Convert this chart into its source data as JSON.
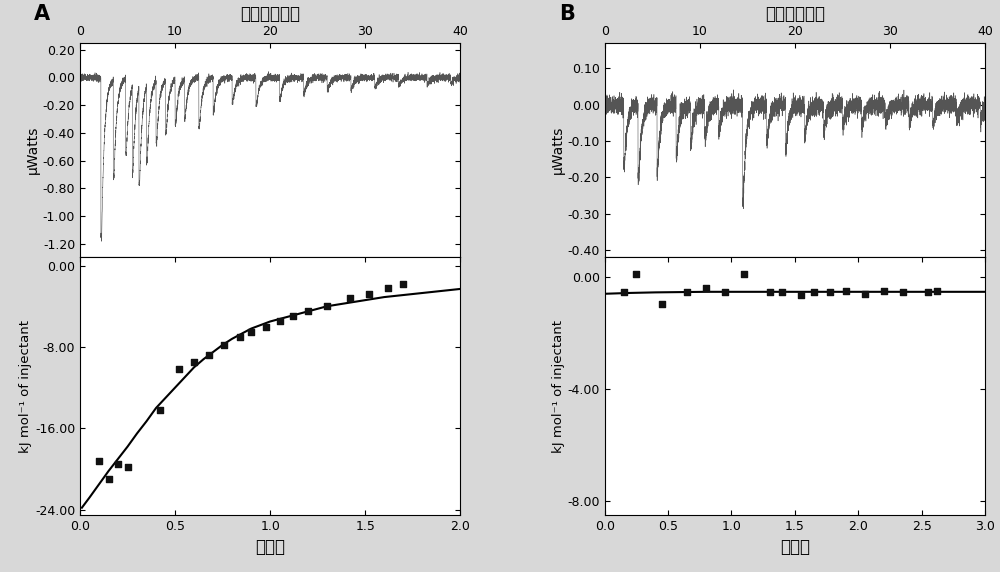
{
  "panel_A": {
    "label": "A",
    "top": {
      "xlabel": "时间（分钟）",
      "ylabel": "μWatts",
      "xlim": [
        0,
        40
      ],
      "ylim": [
        -1.3,
        0.25
      ],
      "yticks": [
        0.2,
        0.0,
        -0.2,
        -0.4,
        -0.6,
        -0.8,
        -1.0,
        -1.2
      ],
      "xticks": [
        0,
        10,
        20,
        30,
        40
      ]
    },
    "bottom": {
      "xlabel": "摩尔比",
      "ylabel": "kJ mol⁻¹ of injectant",
      "xlim": [
        0.0,
        2.0
      ],
      "ylim": [
        -24.5,
        0.8
      ],
      "yticks": [
        0.0,
        -8.0,
        -16.0,
        -24.0
      ],
      "xticks": [
        0.0,
        0.5,
        1.0,
        1.5,
        2.0
      ],
      "scatter_x": [
        0.1,
        0.15,
        0.2,
        0.25,
        0.42,
        0.52,
        0.6,
        0.68,
        0.76,
        0.84,
        0.9,
        0.98,
        1.05,
        1.12,
        1.2,
        1.3,
        1.42,
        1.52,
        1.62,
        1.7
      ],
      "scatter_y": [
        -19.2,
        -21.0,
        -19.5,
        -19.8,
        -14.2,
        -10.2,
        -9.5,
        -8.8,
        -7.8,
        -7.0,
        -6.5,
        -6.0,
        -5.5,
        -5.0,
        -4.5,
        -4.0,
        -3.2,
        -2.8,
        -2.2,
        -1.8
      ],
      "fit_x": [
        0.01,
        0.05,
        0.1,
        0.15,
        0.2,
        0.25,
        0.3,
        0.35,
        0.4,
        0.45,
        0.5,
        0.55,
        0.6,
        0.65,
        0.7,
        0.75,
        0.8,
        0.9,
        1.0,
        1.1,
        1.2,
        1.3,
        1.4,
        1.5,
        1.6,
        1.7,
        1.8,
        1.9,
        2.0
      ],
      "fit_y": [
        -23.8,
        -22.8,
        -21.5,
        -20.2,
        -19.0,
        -17.8,
        -16.5,
        -15.3,
        -14.0,
        -13.0,
        -12.0,
        -11.0,
        -10.0,
        -9.2,
        -8.5,
        -7.8,
        -7.2,
        -6.2,
        -5.5,
        -5.0,
        -4.5,
        -4.0,
        -3.7,
        -3.4,
        -3.1,
        -2.9,
        -2.7,
        -2.5,
        -2.3
      ]
    }
  },
  "panel_B": {
    "label": "B",
    "top": {
      "xlabel": "时间（分钟）",
      "ylabel": "μWatts",
      "xlim": [
        0,
        40
      ],
      "ylim": [
        -0.42,
        0.17
      ],
      "yticks": [
        0.1,
        0.0,
        -0.1,
        -0.2,
        -0.3,
        -0.4
      ],
      "xticks": [
        0,
        10,
        20,
        30,
        40
      ]
    },
    "bottom": {
      "xlabel": "摩尔比",
      "ylabel": "kJ mol⁻¹ of injectant",
      "xlim": [
        0.0,
        3.0
      ],
      "ylim": [
        -8.5,
        0.7
      ],
      "yticks": [
        0.0,
        -4.0,
        -8.0
      ],
      "xticks": [
        0.0,
        0.5,
        1.0,
        1.5,
        2.0,
        2.5,
        3.0
      ],
      "scatter_x": [
        0.15,
        0.25,
        0.45,
        0.65,
        0.8,
        0.95,
        1.1,
        1.3,
        1.4,
        1.55,
        1.65,
        1.78,
        1.9,
        2.05,
        2.2,
        2.35,
        2.55,
        2.62
      ],
      "scatter_y": [
        -0.55,
        0.12,
        -0.95,
        -0.55,
        -0.38,
        -0.55,
        0.12,
        -0.55,
        -0.55,
        -0.65,
        -0.55,
        -0.55,
        -0.5,
        -0.6,
        -0.5,
        -0.55,
        -0.55,
        -0.5
      ],
      "fit_x": [
        0.0,
        0.2,
        0.4,
        0.6,
        0.8,
        1.0,
        1.2,
        1.5,
        2.0,
        2.5,
        3.0
      ],
      "fit_y": [
        -0.6,
        -0.57,
        -0.55,
        -0.54,
        -0.53,
        -0.53,
        -0.53,
        -0.53,
        -0.53,
        -0.53,
        -0.53
      ]
    }
  },
  "fig_bg": "#d8d8d8",
  "plot_bg": "#ffffff",
  "signal_color": "#555555",
  "scatter_color": "#111111",
  "fit_color": "#000000",
  "label_fontsize": 10,
  "tick_fontsize": 9,
  "title_fontsize": 12,
  "panel_label_fontsize": 15
}
